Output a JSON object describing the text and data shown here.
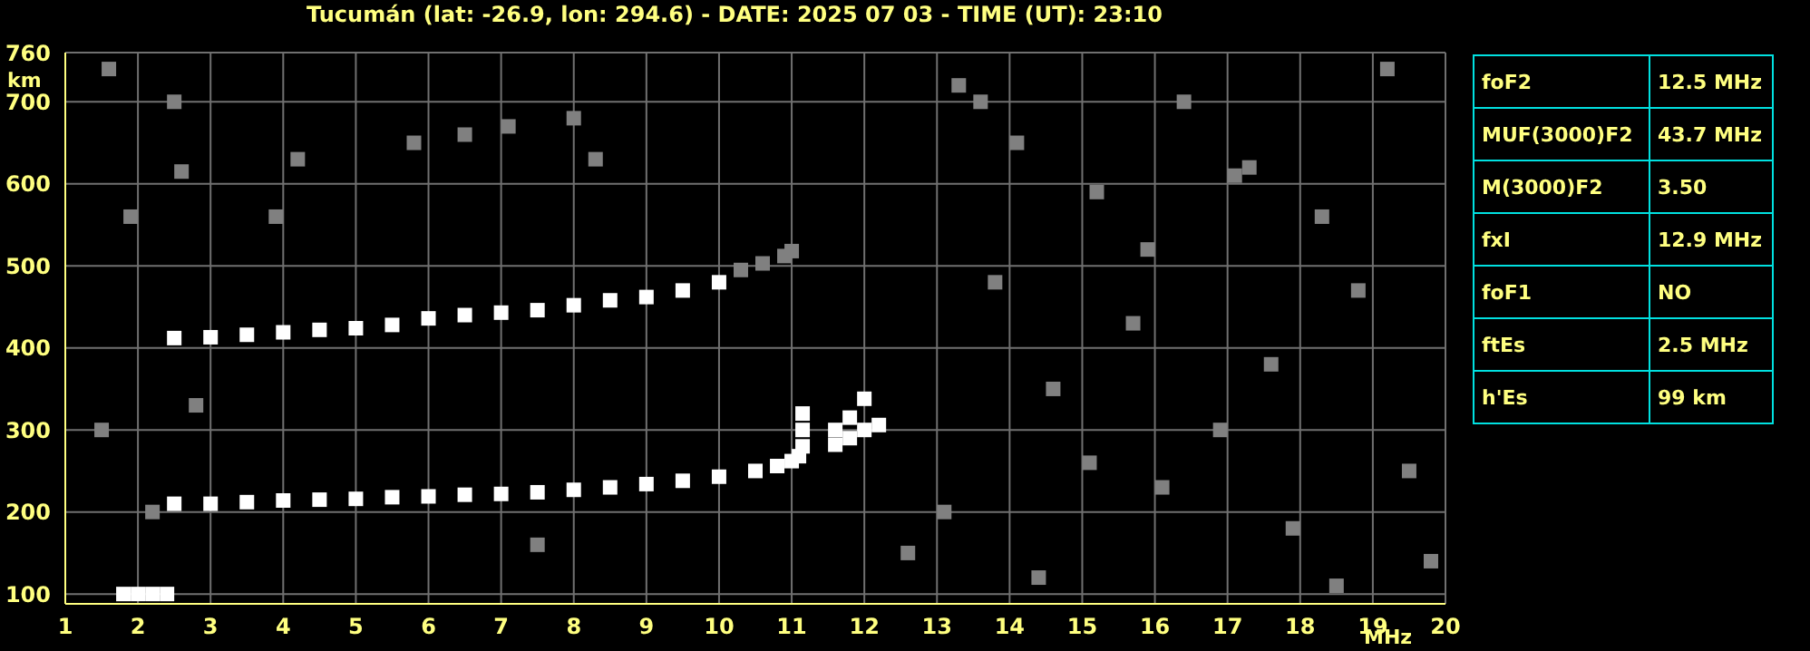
{
  "chart_data": [
    {
      "type": "scatter",
      "title": "Tucumán (lat: -26.9, lon: 294.6) - DATE: 2025 07 03 - TIME (UT): 23:10",
      "xlabel": "MHz",
      "ylabel": "km",
      "xlim": [
        1,
        20
      ],
      "ylim": [
        88,
        760
      ],
      "xticks": [
        1,
        2,
        3,
        4,
        5,
        6,
        7,
        8,
        9,
        10,
        11,
        12,
        13,
        14,
        15,
        16,
        17,
        18,
        19,
        20
      ],
      "yticks": [
        100,
        200,
        300,
        400,
        500,
        600,
        700,
        760
      ],
      "grid": true,
      "legend": false,
      "marker": "square",
      "series": [
        {
          "color": "#ffffff",
          "x": [
            2.5,
            3,
            3.5,
            4,
            4.5,
            5,
            5.5,
            6,
            6.5,
            7,
            7.5,
            8,
            8.5,
            9,
            9.5,
            10,
            10.5,
            10.8,
            11,
            11.1,
            11.15,
            11.15,
            11.15
          ],
          "values": [
            210,
            210,
            212,
            214,
            215,
            216,
            218,
            219,
            221,
            222,
            224,
            227,
            230,
            234,
            238,
            243,
            250,
            256,
            262,
            268,
            280,
            300,
            320
          ]
        },
        {
          "color": "#ffffff",
          "x": [
            11.6,
            11.8,
            12,
            12.2,
            11.6,
            11.8,
            12
          ],
          "values": [
            282,
            290,
            300,
            306,
            300,
            315,
            338
          ]
        },
        {
          "color": "#ffffff",
          "x": [
            2.5,
            3,
            3.5,
            4,
            4.5,
            5,
            5.5,
            6,
            6.5,
            7,
            7.5,
            8,
            8.5,
            9,
            9.5,
            10
          ],
          "values": [
            412,
            413,
            416,
            419,
            422,
            424,
            428,
            436,
            440,
            443,
            446,
            452,
            458,
            462,
            470,
            480
          ]
        },
        {
          "color": "#808080",
          "x": [
            10.3,
            10.6,
            10.9,
            11
          ],
          "values": [
            495,
            503,
            512,
            518
          ]
        },
        {
          "color": "#ffffff",
          "x": [
            1.8,
            2,
            2.2,
            2.4
          ],
          "values": [
            100,
            100,
            100,
            100
          ]
        },
        {
          "color": "#808080",
          "x": [
            1.6,
            2.6,
            2.5,
            4.2,
            5.8,
            6.5,
            7.1,
            8,
            8.3,
            1.9,
            3.9,
            2.8,
            1.5,
            2.2,
            7.5,
            13.3,
            14.1,
            15.2,
            16.4,
            17.1,
            18.3,
            19.2,
            13.8,
            15.7,
            17.6,
            18.8,
            14.6,
            16.9,
            19.5,
            13.1,
            15.1,
            17.9,
            12.6,
            14.4,
            16.1,
            18.5,
            19.8,
            13.6,
            15.9,
            17.3
          ],
          "values": [
            740,
            615,
            700,
            630,
            650,
            660,
            670,
            680,
            630,
            560,
            560,
            330,
            300,
            200,
            160,
            720,
            650,
            590,
            700,
            610,
            560,
            740,
            480,
            430,
            380,
            470,
            350,
            300,
            250,
            200,
            260,
            180,
            150,
            120,
            230,
            110,
            140,
            700,
            520,
            620
          ]
        }
      ]
    },
    {
      "type": "other",
      "annotations": [
        "foF2",
        "12.5 MHz",
        "MUF(3000)F2",
        "43.7 MHz",
        "M(3000)F2",
        "3.50",
        "fxI",
        "12.9 MHz",
        "foF1",
        "NO",
        "ftEs",
        "2.5 MHz",
        "h'Es",
        "99 km"
      ]
    }
  ]
}
